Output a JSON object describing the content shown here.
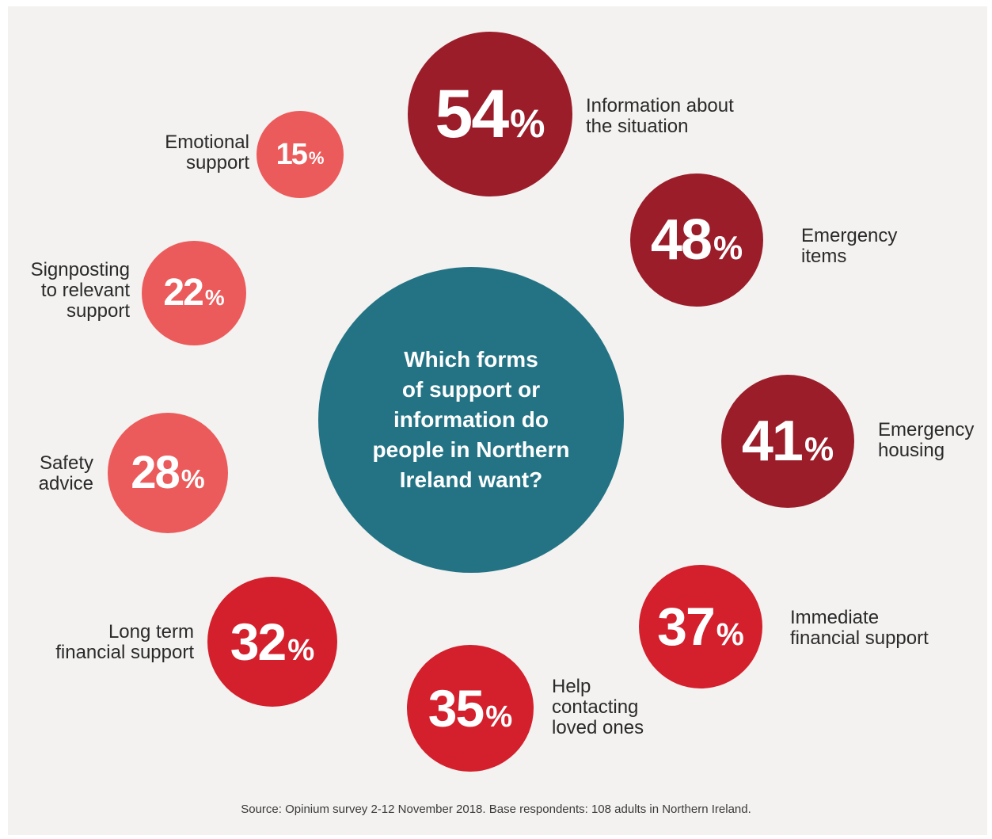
{
  "colors": {
    "background": "#f3f2f0",
    "center": "#237385",
    "dark_red": "#9b1d2a",
    "red": "#d41f2c",
    "coral": "#ec5b5b"
  },
  "question": "Which forms\nof support or\ninformation do\npeople in Northern\nIreland want?",
  "source": "Source: Opinium survey 2-12 November 2018. Base respondents: 108 adults in Northern Ireland.",
  "chart_data": {
    "type": "bubble",
    "title": "Which forms of support or information do people in Northern Ireland want?",
    "unit": "%",
    "items": [
      {
        "label": "Information about\nthe situation",
        "value": 54,
        "display": "54",
        "color": "#9b1d2a"
      },
      {
        "label": "Emergency\nitems",
        "value": 48,
        "display": "48",
        "color": "#9b1d2a"
      },
      {
        "label": "Emergency\nhousing",
        "value": 41,
        "display": "41",
        "color": "#9b1d2a"
      },
      {
        "label": "Immediate\nfinancial support",
        "value": 37,
        "display": "37",
        "color": "#d41f2c"
      },
      {
        "label": "Help\ncontacting\nloved ones",
        "value": 35,
        "display": "35",
        "color": "#d41f2c"
      },
      {
        "label": "Long term\nfinancial support",
        "value": 32,
        "display": "32",
        "color": "#d41f2c"
      },
      {
        "label": "Safety\nadvice",
        "value": 28,
        "display": "28",
        "color": "#ec5b5b"
      },
      {
        "label": "Signposting\nto relevant\nsupport",
        "value": 22,
        "display": "22",
        "color": "#ec5b5b"
      },
      {
        "label": "Emotional\nsupport",
        "value": 15,
        "display": "15",
        "color": "#ec5b5b"
      }
    ]
  }
}
